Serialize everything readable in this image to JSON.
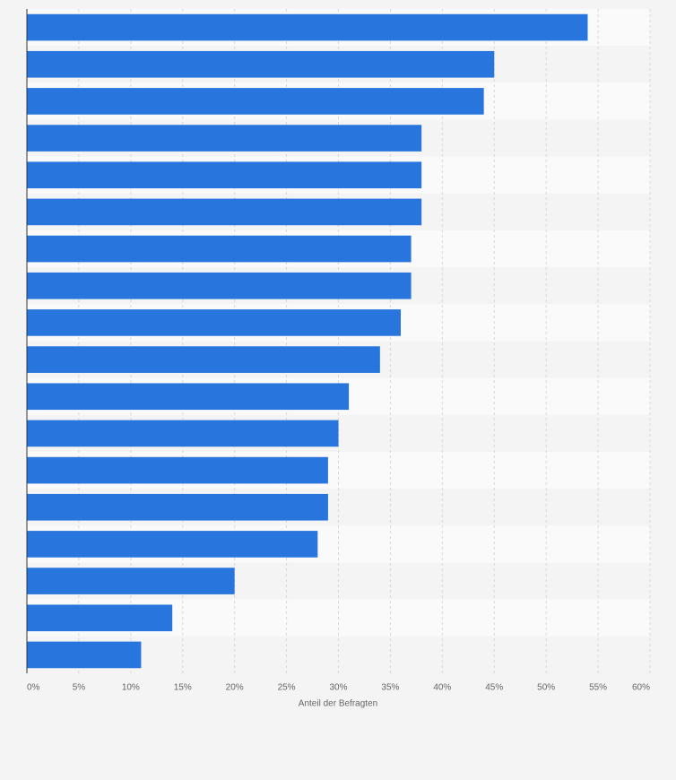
{
  "chart_data": {
    "type": "hbar",
    "xlabel": "Anteil der Befragten",
    "categories": [
      null,
      null,
      null,
      null,
      null,
      null,
      null,
      null,
      null,
      null,
      null,
      null,
      null,
      null,
      null,
      null,
      null,
      null
    ],
    "values": [
      54,
      45,
      44,
      38,
      38,
      38,
      37,
      37,
      36,
      34,
      31,
      30,
      29,
      29,
      28,
      20,
      14,
      11
    ],
    "color": "#2876dd",
    "xlim": [
      0,
      60
    ],
    "xticks": [
      {
        "value": 0,
        "label": "0%"
      },
      {
        "value": 5,
        "label": "5%"
      },
      {
        "value": 10,
        "label": "10%"
      },
      {
        "value": 15,
        "label": "15%"
      },
      {
        "value": 20,
        "label": "20%"
      },
      {
        "value": 25,
        "label": "25%"
      },
      {
        "value": 30,
        "label": "30%"
      },
      {
        "value": 35,
        "label": "35%"
      },
      {
        "value": 40,
        "label": "40%"
      },
      {
        "value": 45,
        "label": "45%"
      },
      {
        "value": 50,
        "label": "50%"
      },
      {
        "value": 55,
        "label": "55%"
      },
      {
        "value": 60,
        "label": "60%"
      }
    ],
    "grid": true
  }
}
